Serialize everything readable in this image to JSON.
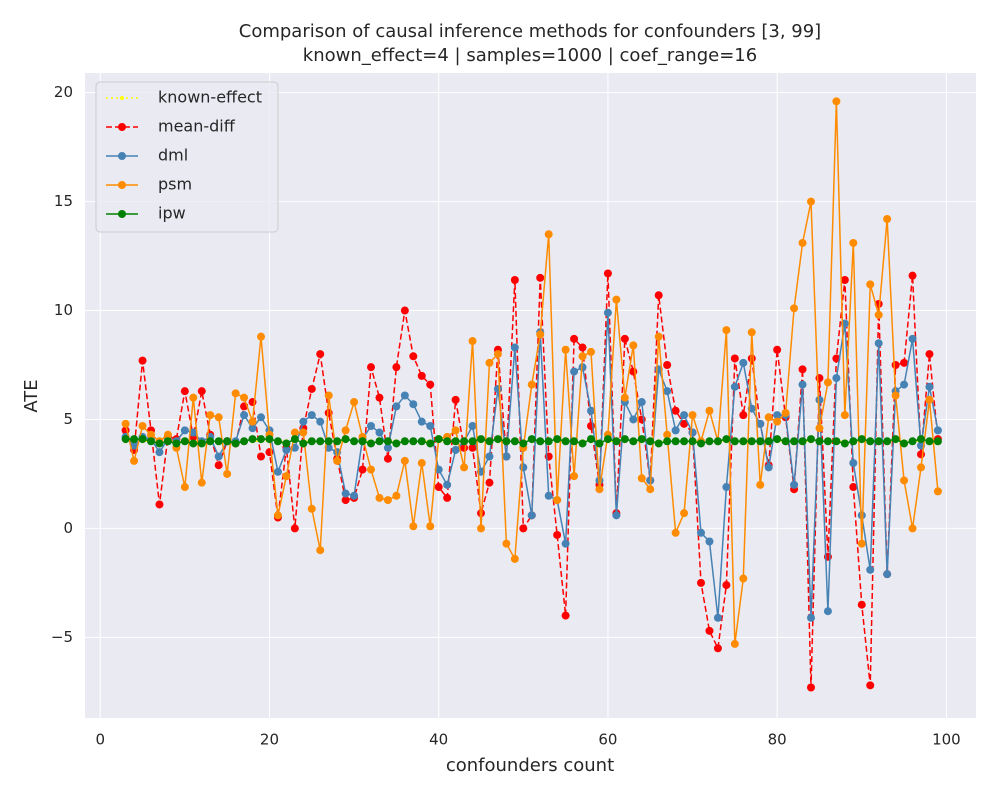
{
  "chart_data": {
    "type": "line",
    "title": "Comparison of causal inference methods for confounders [3, 99]",
    "subtitle": "known_effect=4 | samples=1000 | coef_range=16",
    "x_label": "confounders count",
    "y_label": "ATE",
    "xlim": [
      -1.8,
      103.5
    ],
    "ylim": [
      -8.7,
      20.9
    ],
    "xticks": [
      0,
      20,
      40,
      60,
      80,
      100
    ],
    "yticks": [
      {
        "value": -5,
        "label": "−5"
      },
      0,
      5,
      10,
      15,
      20
    ],
    "grid": true,
    "legend": "upper left",
    "x": [
      3,
      4,
      5,
      6,
      7,
      8,
      9,
      10,
      11,
      12,
      13,
      14,
      15,
      16,
      17,
      18,
      19,
      20,
      21,
      22,
      23,
      24,
      25,
      26,
      27,
      28,
      29,
      30,
      31,
      32,
      33,
      34,
      35,
      36,
      37,
      38,
      39,
      40,
      41,
      42,
      43,
      44,
      45,
      46,
      47,
      48,
      49,
      50,
      51,
      52,
      53,
      54,
      55,
      56,
      57,
      58,
      59,
      60,
      61,
      62,
      63,
      64,
      65,
      66,
      67,
      68,
      69,
      70,
      71,
      72,
      73,
      74,
      75,
      76,
      77,
      78,
      79,
      80,
      81,
      82,
      83,
      84,
      85,
      86,
      87,
      88,
      89,
      90,
      91,
      92,
      93,
      94,
      95,
      96,
      97,
      98,
      99
    ],
    "series": [
      {
        "name": "known-effect",
        "color": "#ffff00",
        "linestyle": "dotted",
        "values": [
          4,
          4,
          4,
          4,
          4,
          4,
          4,
          4,
          4,
          4,
          4,
          4,
          4,
          4,
          4,
          4,
          4,
          4,
          4,
          4,
          4,
          4,
          4,
          4,
          4,
          4,
          4,
          4,
          4,
          4,
          4,
          4,
          4,
          4,
          4,
          4,
          4,
          4,
          4,
          4,
          4,
          4,
          4,
          4,
          4,
          4,
          4,
          4,
          4,
          4,
          4,
          4,
          4,
          4,
          4,
          4,
          4,
          4,
          4,
          4,
          4,
          4,
          4,
          4,
          4,
          4,
          4,
          4,
          4,
          4,
          4,
          4,
          4,
          4,
          4,
          4,
          4,
          4,
          4,
          4,
          4,
          4,
          4,
          4,
          4,
          4,
          4,
          4,
          4,
          4,
          4,
          4,
          4,
          4,
          4,
          4,
          4
        ]
      },
      {
        "name": "mean-diff",
        "color": "#ff0000",
        "linestyle": "dashed",
        "values": [
          4.5,
          3.6,
          7.7,
          4.5,
          1.1,
          4.2,
          4.1,
          6.3,
          4.2,
          6.3,
          4.3,
          2.9,
          4.0,
          3.9,
          5.6,
          5.8,
          3.3,
          3.5,
          0.5,
          3.7,
          0.0,
          4.6,
          6.4,
          8.0,
          5.3,
          3.2,
          1.3,
          1.4,
          2.7,
          7.4,
          6.0,
          3.2,
          7.4,
          10.0,
          7.9,
          7.0,
          6.6,
          1.9,
          1.4,
          5.9,
          3.7,
          3.7,
          0.7,
          2.1,
          8.2,
          3.3,
          11.4,
          0.0,
          0.6,
          11.5,
          3.3,
          -0.3,
          -4.0,
          8.7,
          8.3,
          4.7,
          2.0,
          11.7,
          0.7,
          8.7,
          7.2,
          5.0,
          2.2,
          10.7,
          7.5,
          5.4,
          4.8,
          4.4,
          -2.5,
          -4.7,
          -5.5,
          -2.6,
          7.8,
          5.2,
          7.8,
          4.8,
          2.9,
          8.2,
          5.1,
          1.8,
          7.3,
          -7.3,
          6.9,
          -1.3,
          7.8,
          11.4,
          1.9,
          -3.5,
          -7.2,
          10.3,
          -2.1,
          7.5,
          7.6,
          11.6,
          3.4,
          8.0,
          4.1
        ]
      },
      {
        "name": "dml",
        "color": "#4682b4",
        "linestyle": "solid",
        "values": [
          4.2,
          3.8,
          4.2,
          4.1,
          3.5,
          4.1,
          4.0,
          4.5,
          4.4,
          4.0,
          4.2,
          3.3,
          4.0,
          4.0,
          5.2,
          4.6,
          5.1,
          4.5,
          2.6,
          3.6,
          3.7,
          4.9,
          5.2,
          4.9,
          3.7,
          3.5,
          1.6,
          1.5,
          4.1,
          4.7,
          4.4,
          3.7,
          5.6,
          6.1,
          5.7,
          4.9,
          4.7,
          2.7,
          2.0,
          3.6,
          4.0,
          4.7,
          2.6,
          3.3,
          6.4,
          3.3,
          8.3,
          2.8,
          0.6,
          9.0,
          1.5,
          1.3,
          -0.7,
          7.2,
          7.4,
          5.4,
          2.2,
          9.9,
          0.6,
          5.8,
          5.0,
          5.8,
          2.2,
          7.3,
          6.3,
          4.5,
          5.2,
          4.4,
          -0.2,
          -0.6,
          -4.1,
          1.9,
          6.5,
          7.6,
          5.5,
          4.8,
          2.8,
          5.2,
          5.2,
          2.0,
          6.6,
          -4.1,
          5.9,
          -3.8,
          6.9,
          9.4,
          3.0,
          0.6,
          -1.9,
          8.5,
          -2.1,
          6.3,
          6.6,
          8.7,
          3.8,
          6.5,
          4.5
        ]
      },
      {
        "name": "psm",
        "color": "#ff8c00",
        "linestyle": "solid",
        "values": [
          4.8,
          3.1,
          4.7,
          4.3,
          4.0,
          4.3,
          3.7,
          1.9,
          6.0,
          2.1,
          5.2,
          5.1,
          2.5,
          6.2,
          6.0,
          4.9,
          8.8,
          4.3,
          0.6,
          2.4,
          4.4,
          4.4,
          0.9,
          -1.0,
          6.1,
          3.1,
          4.5,
          5.8,
          4.2,
          2.7,
          1.4,
          1.3,
          1.5,
          3.1,
          0.1,
          3.0,
          0.1,
          4.1,
          4.2,
          4.5,
          2.8,
          8.6,
          0.0,
          7.6,
          8.0,
          -0.7,
          -1.4,
          3.7,
          6.6,
          8.9,
          13.5,
          1.3,
          8.2,
          2.4,
          7.9,
          8.1,
          1.8,
          4.3,
          10.5,
          6.0,
          8.4,
          2.3,
          1.8,
          8.8,
          4.3,
          -0.2,
          0.7,
          5.2,
          4.0,
          5.4,
          4.0,
          9.1,
          -5.3,
          -2.3,
          9.0,
          2.0,
          5.1,
          4.9,
          5.3,
          10.1,
          13.1,
          15.0,
          4.6,
          6.7,
          19.6,
          5.2,
          13.1,
          -0.7,
          11.2,
          9.8,
          14.2,
          6.1,
          2.2,
          0.0,
          2.8,
          5.9,
          1.7
        ]
      },
      {
        "name": "ipw",
        "color": "#008000",
        "linestyle": "solid",
        "values": [
          4.1,
          4.1,
          4.1,
          4.0,
          3.9,
          4.0,
          3.9,
          4.0,
          3.9,
          3.9,
          4.0,
          4.0,
          4.0,
          3.9,
          4.0,
          4.1,
          4.1,
          4.1,
          4.0,
          3.9,
          4.1,
          3.9,
          4.0,
          4.0,
          4.0,
          4.0,
          4.1,
          4.0,
          4.0,
          3.9,
          4.0,
          4.0,
          3.9,
          4.0,
          4.0,
          4.0,
          3.9,
          4.1,
          4.0,
          4.0,
          4.0,
          4.0,
          4.1,
          4.0,
          4.1,
          4.0,
          4.0,
          3.9,
          4.1,
          4.0,
          4.0,
          4.1,
          4.0,
          4.0,
          3.9,
          4.1,
          3.9,
          4.1,
          4.0,
          4.1,
          4.0,
          4.1,
          4.0,
          3.9,
          4.0,
          4.0,
          4.0,
          4.0,
          3.9,
          4.0,
          4.0,
          4.1,
          4.0,
          4.0,
          4.0,
          4.0,
          4.0,
          4.1,
          4.0,
          4.0,
          4.0,
          4.1,
          4.0,
          4.0,
          4.0,
          3.9,
          4.0,
          4.1,
          4.0,
          4.0,
          4.0,
          4.1,
          3.9,
          4.0,
          4.1,
          4.0,
          4.0
        ]
      }
    ]
  }
}
